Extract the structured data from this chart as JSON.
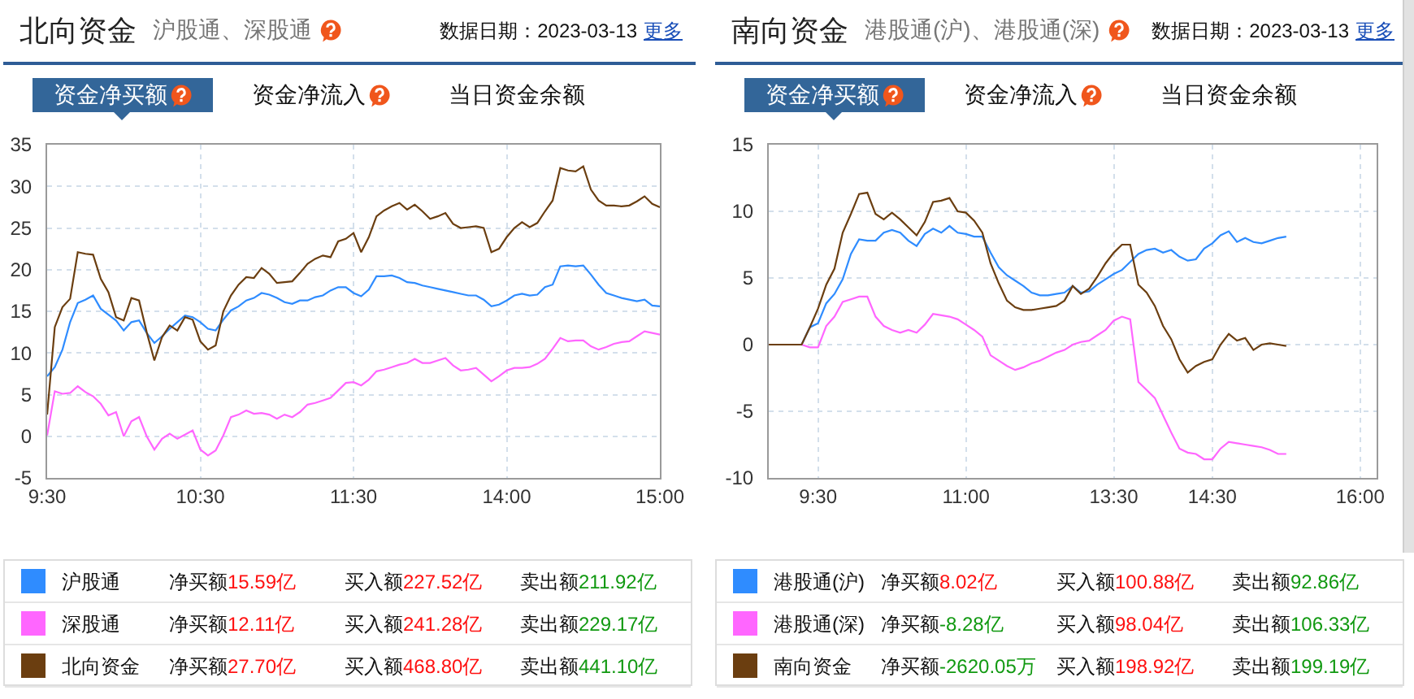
{
  "chart_data": [
    {
      "type": "line",
      "title": "北向资金",
      "subtitle": "沪股通、深股通",
      "annotations": [
        "数据日期：2023-03-13",
        "更多",
        "资金净买额",
        "资金净流入",
        "当日资金余额",
        "净买额",
        "15.59亿",
        "买入额",
        "227.52亿",
        "卖出额",
        "211.92亿",
        "净买额",
        "12.11亿",
        "买入额",
        "241.28亿",
        "卖出额",
        "229.17亿",
        "净买额",
        "27.70亿",
        "买入额",
        "468.80亿",
        "卖出额",
        "441.10亿"
      ],
      "categories": [
        "9:30",
        null,
        null,
        null,
        null,
        null,
        null,
        null,
        null,
        null,
        null,
        null,
        null,
        null,
        null,
        null,
        null,
        null,
        null,
        null,
        "10:30",
        null,
        null,
        null,
        null,
        null,
        null,
        null,
        null,
        null,
        null,
        null,
        null,
        null,
        null,
        null,
        null,
        null,
        null,
        null,
        "11:30",
        null,
        null,
        null,
        null,
        null,
        null,
        null,
        null,
        null,
        null,
        null,
        null,
        null,
        null,
        null,
        null,
        null,
        null,
        null,
        "14:00",
        null,
        null,
        null,
        null,
        null,
        null,
        null,
        null,
        null,
        null,
        null,
        null,
        null,
        null,
        null,
        null,
        null,
        null,
        null,
        "15:00"
      ],
      "ylim": [
        -5,
        35
      ],
      "yticks": [
        -5,
        0,
        5,
        10,
        15,
        20,
        25,
        30,
        35
      ],
      "grid": true,
      "legend": "bottom",
      "series": [
        {
          "name": "沪股通",
          "color": "#2f8cff",
          "values": [
            7.2,
            8.3,
            10.4,
            13.7,
            16.0,
            16.4,
            16.9,
            15.3,
            14.6,
            13.9,
            12.7,
            13.7,
            13.9,
            12.4,
            11.2,
            12,
            12.9,
            13.7,
            14.5,
            14.3,
            13.7,
            12.9,
            12.7,
            14,
            15.1,
            15.6,
            16.3,
            16.6,
            17.2,
            17,
            16.6,
            16.1,
            15.9,
            16.3,
            16.3,
            16.7,
            16.9,
            17.5,
            17.9,
            17.9,
            17.2,
            16.8,
            17.6,
            19.2,
            19.2,
            19.3,
            19.0,
            18.5,
            18.4,
            18.1,
            17.9,
            17.7,
            17.5,
            17.3,
            17.1,
            16.9,
            16.9,
            16.4,
            15.6,
            15.8,
            16.3,
            16.9,
            17.1,
            16.9,
            17,
            17.9,
            18.2,
            20.4,
            20.5,
            20.4,
            20.5,
            19.4,
            18.2,
            17.2,
            16.9,
            16.6,
            16.4,
            16.2,
            16.4,
            15.7,
            15.6
          ]
        },
        {
          "name": "深股通",
          "color": "#ff66ff",
          "values": [
            0.1,
            5.4,
            5.1,
            5.2,
            6.0,
            5.3,
            4.8,
            3.9,
            2.5,
            2.9,
            0,
            1.8,
            2.3,
            0,
            -1.6,
            -0.3,
            0.3,
            -0.3,
            0.2,
            0.7,
            -1.6,
            -2.3,
            -1.7,
            0.1,
            2.3,
            2.6,
            3.1,
            2.7,
            2.8,
            2.6,
            2.1,
            2.6,
            2.3,
            2.9,
            3.8,
            4.0,
            4.3,
            4.6,
            5.5,
            6.4,
            6.5,
            6.1,
            6.8,
            7.8,
            8.0,
            8.3,
            8.6,
            8.8,
            9.3,
            8.8,
            8.8,
            9.1,
            9.4,
            8.5,
            7.9,
            8.0,
            8.2,
            7.4,
            6.6,
            7.2,
            7.9,
            8.2,
            8.2,
            8.3,
            8.7,
            9.3,
            10.5,
            11.8,
            11.4,
            11.5,
            11.5,
            10.8,
            10.4,
            10.7,
            11.1,
            11.3,
            11.4,
            12.0,
            12.6,
            12.4,
            12.2
          ]
        },
        {
          "name": "北向资金",
          "color": "#6b3e10",
          "values": [
            2.6,
            13.1,
            15.5,
            16.5,
            22.1,
            21.9,
            21.8,
            18.9,
            17.3,
            14.3,
            13.9,
            16.6,
            16.3,
            12.5,
            9.1,
            11.9,
            13.3,
            12.7,
            14.3,
            14.0,
            11.4,
            10.4,
            10.9,
            15,
            16.9,
            18.2,
            19.1,
            19.0,
            20.2,
            19.5,
            18.4,
            18.5,
            18.6,
            19.6,
            20.7,
            21.3,
            21.7,
            21.5,
            23.4,
            23.7,
            24.4,
            22.1,
            23.9,
            26.4,
            27.1,
            27.6,
            28,
            27.2,
            27.8,
            27,
            26.1,
            26.4,
            26.8,
            25.5,
            25.0,
            25.1,
            25.2,
            25,
            22.1,
            22.5,
            23.9,
            25,
            25.7,
            25.1,
            25.6,
            27.0,
            28.3,
            32.2,
            31.9,
            31.8,
            32.4,
            29.6,
            28.3,
            27.7,
            27.7,
            27.6,
            27.7,
            28.2,
            28.8,
            27.9,
            27.5
          ]
        }
      ]
    },
    {
      "type": "line",
      "title": "南向资金",
      "subtitle": "港股通(沪)、港股通(深)",
      "annotations": [
        "数据日期：2023-03-13",
        "更多",
        "资金净买额",
        "资金净流入",
        "当日资金余额",
        "净买额",
        "8.02亿",
        "买入额",
        "100.88亿",
        "卖出额",
        "92.86亿",
        "净买额",
        "-8.28亿",
        "买入额",
        "98.04亿",
        "卖出额",
        "106.33亿",
        "净买额",
        "-2620.05万",
        "买入额",
        "198.92亿",
        "卖出额",
        "199.19亿"
      ],
      "categories": [
        null,
        null,
        null,
        null,
        null,
        null,
        "9:30",
        null,
        null,
        null,
        null,
        null,
        null,
        null,
        null,
        null,
        null,
        null,
        null,
        null,
        null,
        null,
        null,
        null,
        "11:00",
        null,
        null,
        null,
        null,
        null,
        null,
        null,
        null,
        null,
        null,
        null,
        null,
        null,
        null,
        null,
        null,
        null,
        "13:30",
        null,
        null,
        null,
        null,
        null,
        null,
        null,
        null,
        null,
        null,
        null,
        "14:30",
        null,
        null,
        null,
        null,
        null,
        null,
        null,
        null,
        null,
        null,
        null,
        null,
        null,
        null,
        null,
        null,
        null,
        "16:00",
        null,
        null
      ],
      "ylim": [
        -10,
        15
      ],
      "yticks": [
        -10,
        -5,
        0,
        5,
        10,
        15
      ],
      "grid": true,
      "legend": "bottom",
      "series": [
        {
          "name": "港股通(沪)",
          "color": "#2f8cff",
          "values": [
            null,
            null,
            null,
            null,
            0,
            1.3,
            1.6,
            3.1,
            3.8,
            4.9,
            6.8,
            7.9,
            7.8,
            7.8,
            8.4,
            8.6,
            8.4,
            7.8,
            7.4,
            8.3,
            8.7,
            8.4,
            8.9,
            8.4,
            8.3,
            8.1,
            8.1,
            6.9,
            5.8,
            5.2,
            4.8,
            4.4,
            3.9,
            3.7,
            3.7,
            3.8,
            3.9,
            4.4,
            3.9,
            4.0,
            4.5,
            4.9,
            5.3,
            5.6,
            6.2,
            6.8,
            7.1,
            7.2,
            6.9,
            7.1,
            6.6,
            6.3,
            6.4,
            7.2,
            7.6,
            8.2,
            8.5,
            7.7,
            8,
            7.7,
            7.6,
            7.8,
            8.0,
            8.1,
            null,
            null,
            null,
            null,
            null,
            null,
            null,
            null,
            null,
            null,
            null
          ]
        },
        {
          "name": "港股通(深)",
          "color": "#ff66ff",
          "values": [
            null,
            null,
            null,
            0,
            0,
            -0.2,
            -0.2,
            1.4,
            2.1,
            3.2,
            3.4,
            3.6,
            3.6,
            2.1,
            1.4,
            1.1,
            0.9,
            1.1,
            0.9,
            1.5,
            2.3,
            2.2,
            2.1,
            1.9,
            1.5,
            1.1,
            0.6,
            -0.8,
            -1.2,
            -1.6,
            -1.9,
            -1.7,
            -1.4,
            -1.2,
            -0.9,
            -0.6,
            -0.4,
            0,
            0.2,
            0.3,
            0.7,
            1.1,
            1.8,
            2.1,
            1.9,
            -2.8,
            -3.4,
            -4.0,
            -5.3,
            -6.6,
            -7.8,
            -8.1,
            -8.2,
            -8.6,
            -8.6,
            -7.8,
            -7.3,
            -7.4,
            -7.5,
            -7.6,
            -7.7,
            -7.9,
            -8.2,
            -8.2,
            null,
            null,
            null,
            null,
            null,
            null,
            null,
            null,
            null,
            null,
            null
          ]
        },
        {
          "name": "南向资金",
          "color": "#6b3e10",
          "values": [
            0,
            0,
            0,
            0,
            0,
            1.3,
            2.7,
            4.5,
            5.7,
            8.4,
            9.8,
            11.3,
            11.4,
            9.8,
            9.4,
            9.9,
            9.4,
            8.8,
            8.2,
            9.2,
            10.7,
            10.8,
            11,
            10,
            9.9,
            9.3,
            8.4,
            6.1,
            4.6,
            3.3,
            2.8,
            2.6,
            2.6,
            2.7,
            2.8,
            2.9,
            3.3,
            4.4,
            3.8,
            4.2,
            5.1,
            6.1,
            6.9,
            7.5,
            7.5,
            4.5,
            3.9,
            2.9,
            1.4,
            0.4,
            -1.1,
            -2.1,
            -1.6,
            -1.3,
            -1.1,
            0,
            0.8,
            0.3,
            0.5,
            -0.4,
            0.0,
            0.1,
            0,
            -0.1,
            null,
            null,
            null,
            null,
            null,
            null,
            null,
            null,
            null,
            null,
            null
          ]
        }
      ]
    }
  ]
}
